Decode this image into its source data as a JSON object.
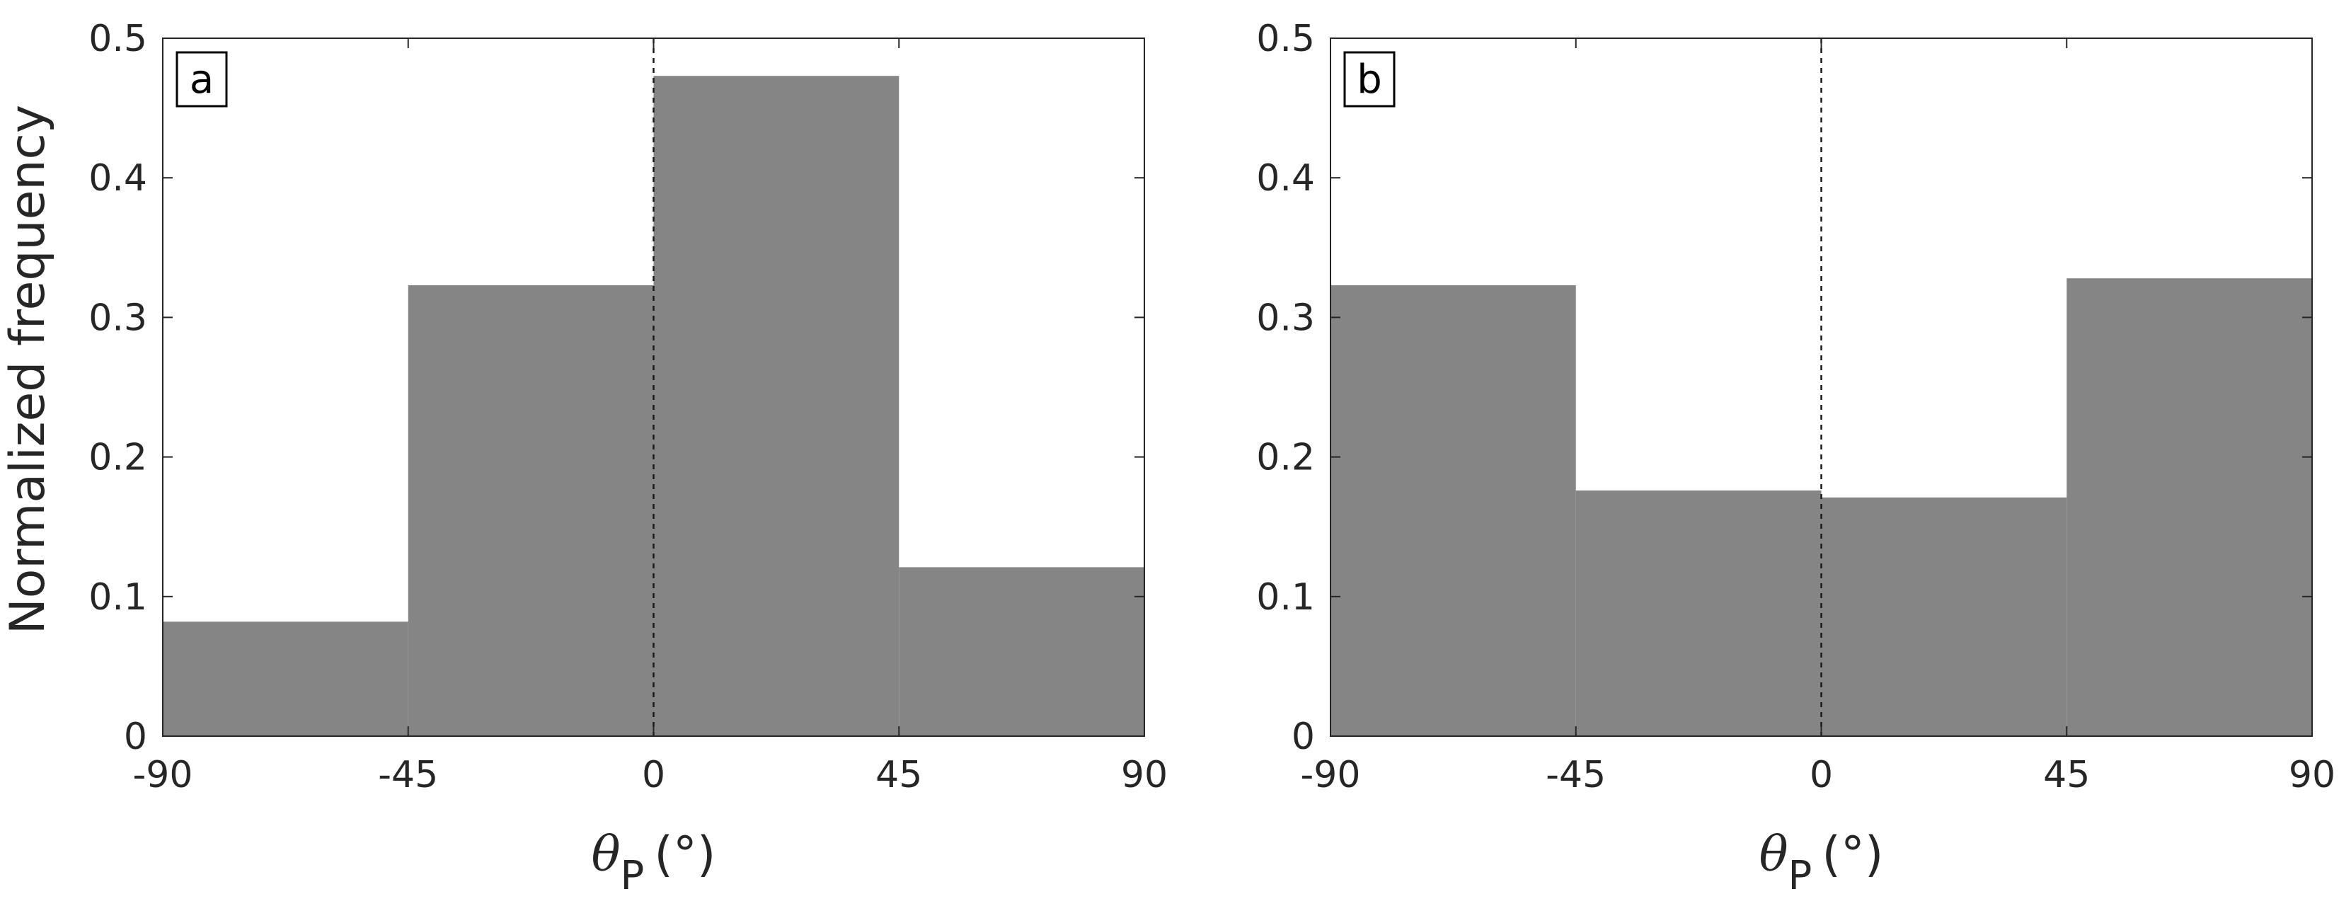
{
  "figure": {
    "ylabel": "Normalized frequency",
    "xlabel_symbol": "θ",
    "xlabel_subscript": "P",
    "xlabel_unit": "(°)"
  },
  "chart_data": [
    {
      "type": "bar",
      "panel_label": "a",
      "bin_edges": [
        -90,
        -45,
        0,
        45,
        90
      ],
      "values": [
        0.082,
        0.323,
        0.473,
        0.121
      ],
      "xlim": [
        -90,
        90
      ],
      "ylim": [
        0,
        0.5
      ],
      "xticks": [
        "-90",
        "-45",
        "0",
        "45",
        "90"
      ],
      "yticks": [
        "0",
        "0.1",
        "0.2",
        "0.3",
        "0.4",
        "0.5"
      ],
      "reference_line_x": 0,
      "bar_color": "#858585",
      "grid": false
    },
    {
      "type": "bar",
      "panel_label": "b",
      "bin_edges": [
        -90,
        -45,
        0,
        45,
        90
      ],
      "values": [
        0.323,
        0.176,
        0.171,
        0.328
      ],
      "xlim": [
        -90,
        90
      ],
      "ylim": [
        0,
        0.5
      ],
      "xticks": [
        "-90",
        "-45",
        "0",
        "45",
        "90"
      ],
      "yticks": [
        "0",
        "0.1",
        "0.2",
        "0.3",
        "0.4",
        "0.5"
      ],
      "reference_line_x": 0,
      "bar_color": "#858585",
      "grid": false
    }
  ]
}
